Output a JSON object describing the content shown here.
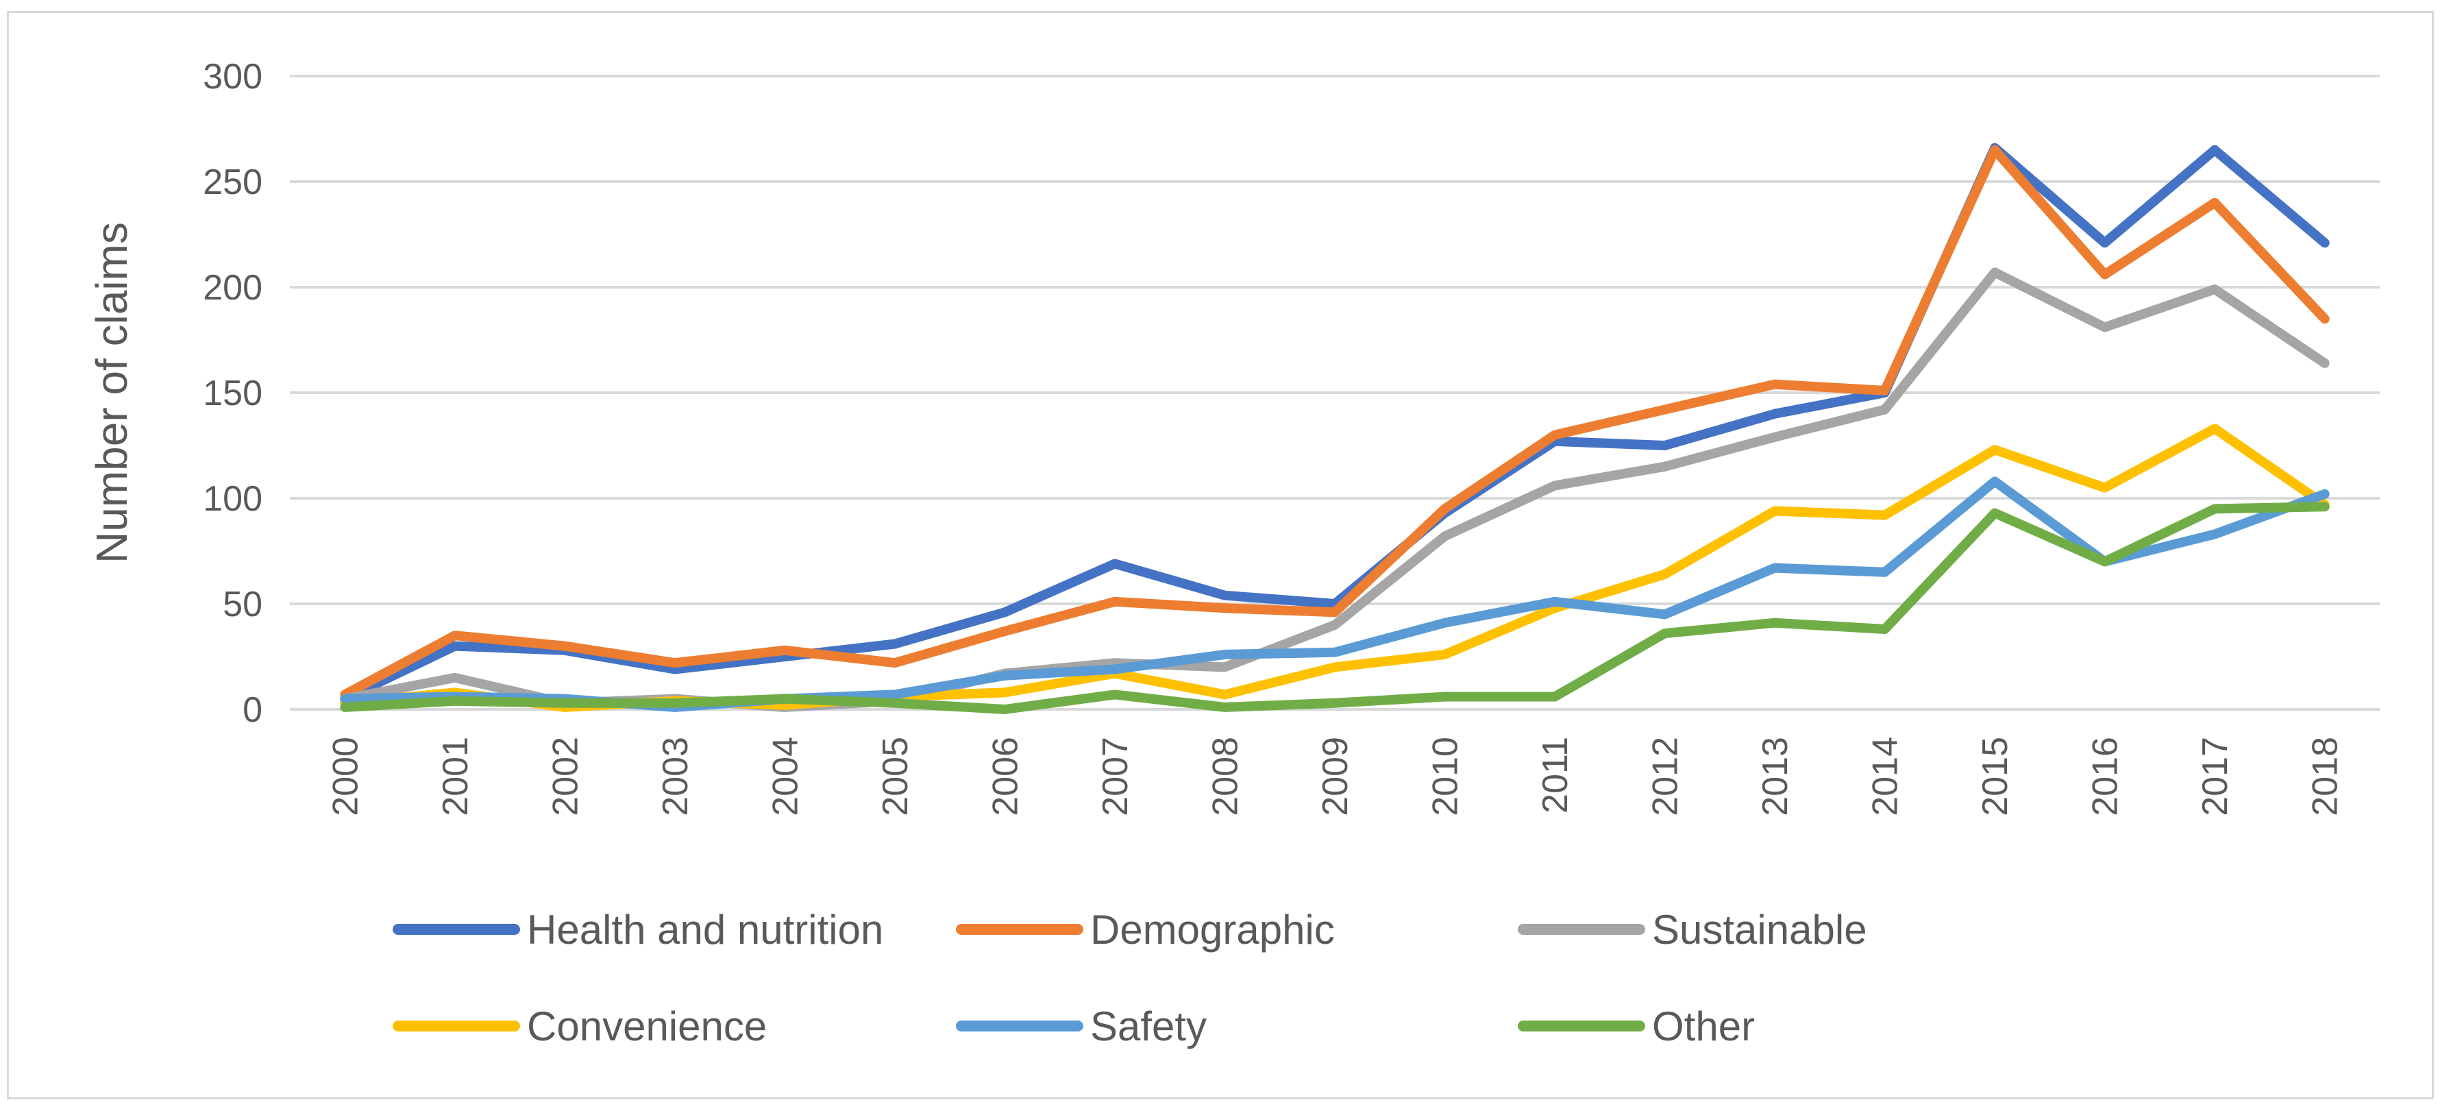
{
  "chart_data": {
    "type": "line",
    "title": "",
    "xlabel": "",
    "ylabel": "Number of claims",
    "ylim": [
      0,
      300
    ],
    "yticks": [
      0,
      50,
      100,
      150,
      200,
      250,
      300
    ],
    "grid": true,
    "legend_position": "bottom",
    "categories": [
      "2000",
      "2001",
      "2002",
      "2003",
      "2004",
      "2005",
      "2006",
      "2007",
      "2008",
      "2009",
      "2010",
      "2011",
      "2012",
      "2013",
      "2014",
      "2015",
      "2016",
      "2017",
      "2018"
    ],
    "series": [
      {
        "name": "Health and nutrition",
        "color": "#4472c4",
        "values": [
          5,
          30,
          28,
          19,
          25,
          31,
          46,
          69,
          54,
          50,
          93,
          127,
          125,
          140,
          150,
          266,
          221,
          265,
          221
        ]
      },
      {
        "name": "Demographic",
        "color": "#ed7d31",
        "values": [
          7,
          35,
          30,
          22,
          28,
          22,
          37,
          51,
          48,
          46,
          95,
          130,
          142,
          154,
          151,
          265,
          206,
          240,
          185
        ]
      },
      {
        "name": "Sustainable",
        "color": "#a5a5a5",
        "values": [
          5,
          15,
          3,
          5,
          1,
          4,
          17,
          22,
          20,
          40,
          82,
          106,
          115,
          129,
          142,
          207,
          181,
          199,
          164
        ]
      },
      {
        "name": "Convenience",
        "color": "#ffc000",
        "values": [
          3,
          8,
          1,
          4,
          2,
          6,
          8,
          17,
          7,
          20,
          26,
          48,
          64,
          94,
          92,
          123,
          105,
          133,
          97
        ]
      },
      {
        "name": "Safety",
        "color": "#5b9bd5",
        "values": [
          5,
          6,
          5,
          1,
          5,
          7,
          16,
          19,
          26,
          27,
          41,
          51,
          45,
          67,
          65,
          108,
          70,
          83,
          102
        ]
      },
      {
        "name": "Other",
        "color": "#70ad47",
        "values": [
          1,
          4,
          3,
          3,
          5,
          3,
          0,
          7,
          1,
          3,
          6,
          6,
          36,
          41,
          38,
          93,
          70,
          95,
          96
        ]
      }
    ]
  }
}
